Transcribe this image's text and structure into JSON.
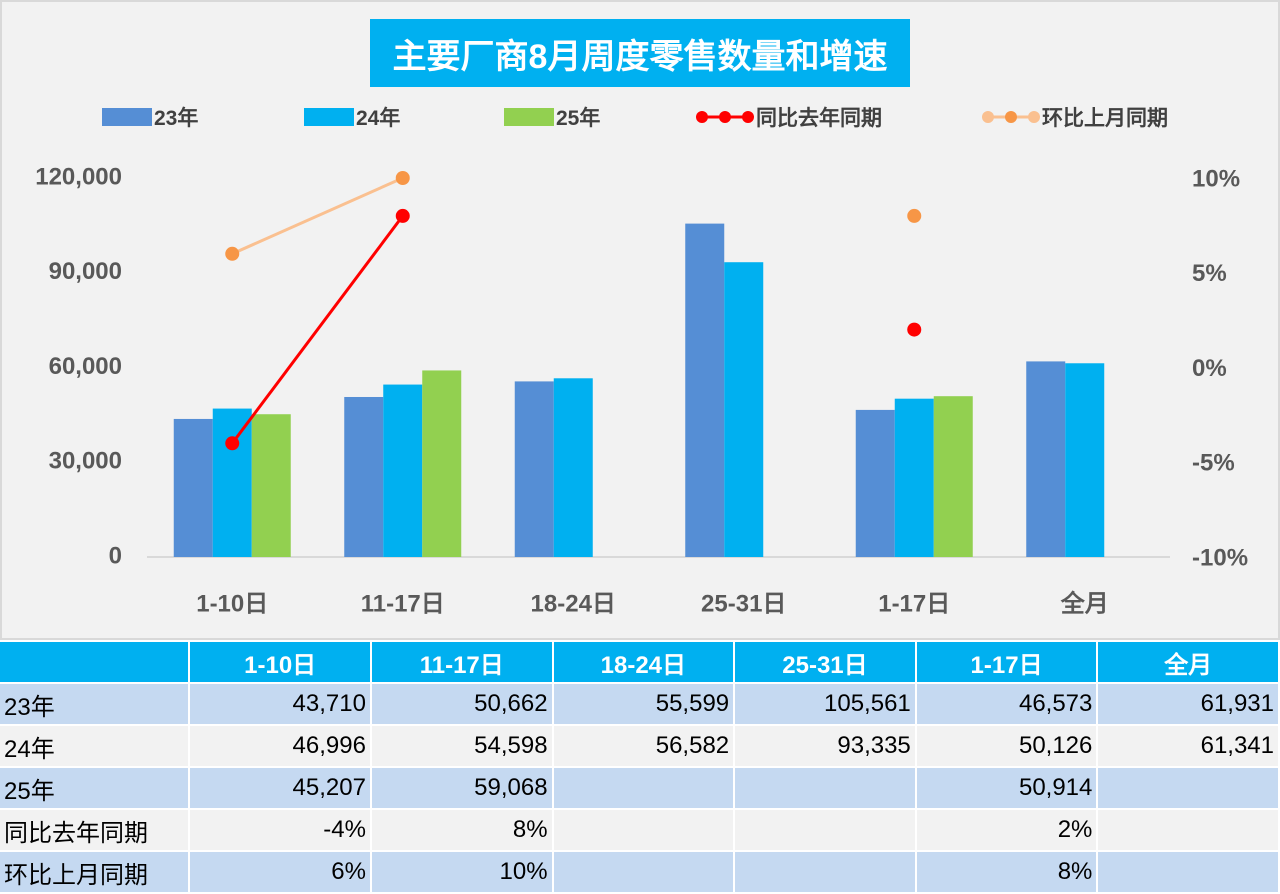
{
  "chart_data": {
    "type": "bar",
    "title": "主要厂商8月周度零售数量和增速",
    "categories": [
      "1-10日",
      "11-17日",
      "18-24日",
      "25-31日",
      "1-17日",
      "全月"
    ],
    "series": [
      {
        "name": "23年",
        "type": "bar",
        "axis": "left",
        "color": "#558ed5",
        "values": [
          43710,
          50662,
          55599,
          105561,
          46573,
          61931
        ]
      },
      {
        "name": "24年",
        "type": "bar",
        "axis": "left",
        "color": "#00b0f0",
        "values": [
          46996,
          54598,
          56582,
          93335,
          50126,
          61341
        ]
      },
      {
        "name": "25年",
        "type": "bar",
        "axis": "left",
        "color": "#92d050",
        "values": [
          45207,
          59068,
          null,
          null,
          50914,
          null
        ]
      },
      {
        "name": "同比去年同期",
        "type": "line",
        "axis": "right",
        "color": "#ff0000",
        "values": [
          -4,
          8,
          null,
          null,
          2,
          null
        ]
      },
      {
        "name": "环比上月同期",
        "type": "line",
        "axis": "right",
        "color": "#f79646",
        "line_color": "#fac090",
        "values": [
          6,
          10,
          null,
          null,
          8,
          null
        ]
      }
    ],
    "y_left": {
      "ylim": [
        0,
        120000
      ],
      "ticks": [
        "0",
        "30,000",
        "60,000",
        "90,000",
        "120,000"
      ]
    },
    "y_right": {
      "ylim": [
        -10,
        10
      ],
      "ticks": [
        "-10%",
        "-5%",
        "0%",
        "5%",
        "10%"
      ]
    },
    "legend": "top",
    "grid": false
  },
  "table": {
    "header": [
      "",
      "1-10日",
      "11-17日",
      "18-24日",
      "25-31日",
      "1-17日",
      "全月"
    ],
    "rows": [
      [
        "23年",
        "43,710",
        "50,662",
        "55,599",
        "105,561",
        "46,573",
        "61,931"
      ],
      [
        "24年",
        "46,996",
        "54,598",
        "56,582",
        "93,335",
        "50,126",
        "61,341"
      ],
      [
        "25年",
        "45,207",
        "59,068",
        "",
        "",
        "50,914",
        ""
      ],
      [
        "同比去年同期",
        "-4%",
        "8%",
        "",
        "",
        "2%",
        ""
      ],
      [
        "环比上月同期",
        "6%",
        "10%",
        "",
        "",
        "8%",
        ""
      ]
    ]
  }
}
